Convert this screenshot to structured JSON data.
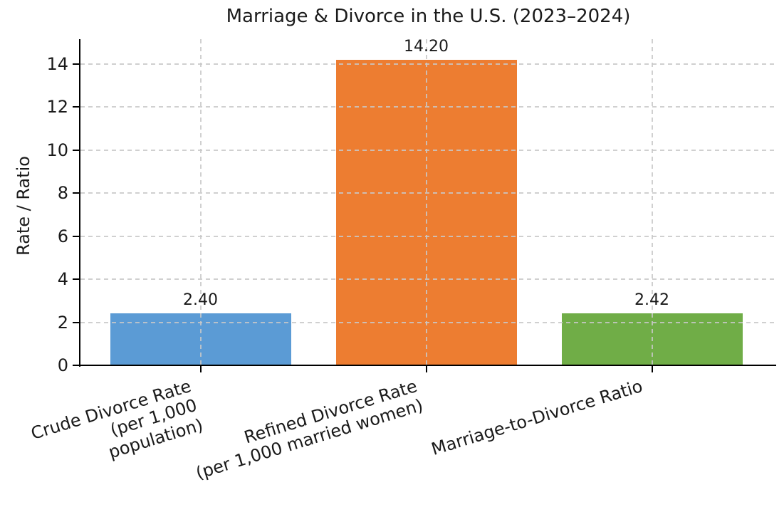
{
  "chart_data": {
    "type": "bar",
    "title": "Marriage & Divorce in the U.S. (2023–2024)",
    "xlabel": "",
    "ylabel": "Rate / Ratio",
    "categories": [
      "Crude Divorce Rate\n(per 1,000 population)",
      "Refined Divorce Rate\n(per 1,000 married women)",
      "Marriage-to-Divorce Ratio"
    ],
    "values": [
      2.4,
      14.2,
      2.42
    ],
    "value_labels": [
      "2.40",
      "14.20",
      "2.42"
    ],
    "bar_colors": [
      "#5b9bd5",
      "#ed7d31",
      "#70ad47"
    ],
    "yticks": [
      0,
      2,
      4,
      6,
      8,
      10,
      12,
      14
    ],
    "ytick_labels": [
      "0",
      "2",
      "4",
      "6",
      "8",
      "10",
      "12",
      "14"
    ],
    "ylim": [
      0,
      15.16
    ],
    "grid": {
      "style": "dashed",
      "axes": "both",
      "color": "#c8c8c8"
    },
    "legend": "none",
    "background_color": "#ffffff",
    "spine_color": "#000000",
    "text_color": "#1a1a1a",
    "x_tick_rotation_deg": 17
  }
}
